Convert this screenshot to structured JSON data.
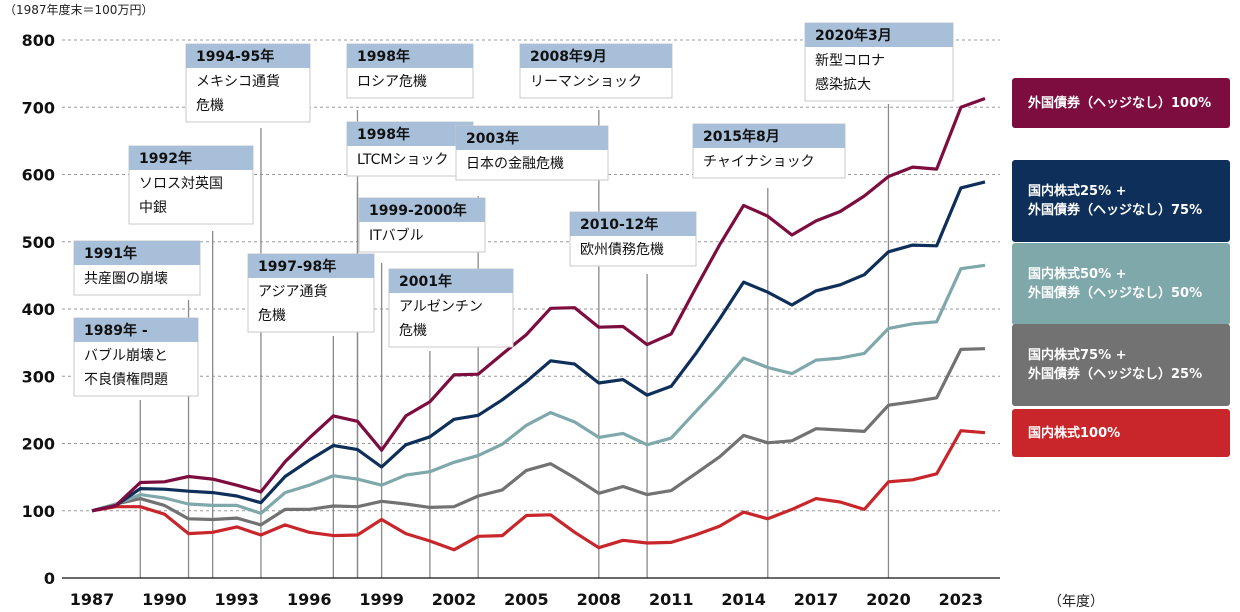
{
  "chart_data": {
    "type": "line",
    "unit_note": "（1987年度末＝100万円）",
    "xlabel": "（年度）",
    "ylim": [
      0,
      800
    ],
    "y_ticks": [
      0,
      100,
      200,
      300,
      400,
      500,
      600,
      700,
      800
    ],
    "x": [
      1987,
      1988,
      1989,
      1990,
      1991,
      1992,
      1993,
      1994,
      1995,
      1996,
      1997,
      1998,
      1999,
      2000,
      2001,
      2002,
      2003,
      2004,
      2005,
      2006,
      2007,
      2008,
      2009,
      2010,
      2011,
      2012,
      2013,
      2014,
      2015,
      2016,
      2017,
      2018,
      2019,
      2020,
      2021,
      2022,
      2023,
      2024
    ],
    "x_tick_labels": [
      1987,
      1990,
      1993,
      1996,
      1999,
      2002,
      2005,
      2008,
      2011,
      2014,
      2017,
      2020,
      2023
    ],
    "series": [
      {
        "name": "外国債券（ヘッジなし）100%",
        "legend_lines": [
          "外国債券（ヘッジなし）100%"
        ],
        "color": "#7d0c3f",
        "values": [
          100,
          108,
          142,
          143,
          151,
          147,
          138,
          128,
          173,
          208,
          241,
          233,
          190,
          241,
          262,
          302,
          303,
          333,
          362,
          401,
          402,
          373,
          374,
          347,
          363,
          430,
          495,
          554,
          538,
          510,
          531,
          545,
          568,
          597,
          611,
          608,
          700,
          713
        ]
      },
      {
        "name": "国内株式25% + 外国債券（ヘッジなし）75%",
        "legend_lines": [
          "国内株式25% +",
          "外国債券（ヘッジなし）75%"
        ],
        "color": "#0d2f5a",
        "values": [
          100,
          108,
          133,
          132,
          129,
          127,
          122,
          112,
          151,
          175,
          197,
          191,
          165,
          198,
          210,
          236,
          242,
          265,
          292,
          323,
          318,
          290,
          295,
          272,
          285,
          333,
          385,
          440,
          425,
          406,
          427,
          436,
          451,
          485,
          495,
          494,
          580,
          589
        ]
      },
      {
        "name": "国内株式50% + 外国債券（ヘッジなし）50%",
        "legend_lines": [
          "国内株式50% +",
          "外国債券（ヘッジなし）50%"
        ],
        "color": "#7fa8ab",
        "values": [
          100,
          110,
          124,
          119,
          110,
          108,
          108,
          96,
          127,
          138,
          152,
          147,
          138,
          153,
          158,
          172,
          182,
          199,
          227,
          246,
          232,
          209,
          215,
          198,
          208,
          247,
          285,
          327,
          313,
          304,
          324,
          327,
          334,
          371,
          378,
          381,
          460,
          465
        ]
      },
      {
        "name": "国内株式75% + 外国債券（ヘッジなし）25%",
        "legend_lines": [
          "国内株式75% +",
          "外国債券（ヘッジなし）25%"
        ],
        "color": "#727272",
        "values": [
          100,
          110,
          118,
          108,
          88,
          87,
          89,
          79,
          102,
          102,
          107,
          106,
          114,
          110,
          105,
          106,
          122,
          131,
          160,
          170,
          149,
          126,
          136,
          124,
          130,
          155,
          180,
          212,
          201,
          204,
          222,
          220,
          218,
          257,
          262,
          268,
          340,
          341
        ]
      },
      {
        "name": "国内株式100%",
        "legend_lines": [
          "国内株式100%"
        ],
        "color": "#c8262b",
        "values": [
          100,
          106,
          106,
          95,
          66,
          68,
          76,
          64,
          79,
          68,
          63,
          64,
          87,
          66,
          55,
          42,
          62,
          63,
          93,
          94,
          68,
          45,
          56,
          52,
          53,
          64,
          77,
          98,
          88,
          102,
          118,
          113,
          102,
          143,
          146,
          155,
          219,
          216
        ]
      }
    ],
    "annotations": [
      {
        "year": 1989,
        "line_top": 400,
        "lines": [
          "1989年 -",
          "バブル崩壊と",
          "不良債権問題"
        ]
      },
      {
        "year": 1991,
        "line_top": 300,
        "lines": [
          "1991年",
          "共産圏の崩壊"
        ]
      },
      {
        "year": 1992,
        "line_top": 231,
        "lines": [
          "1992年",
          "ソロス対英国",
          "中銀"
        ]
      },
      {
        "year": 1994,
        "line_top": 128,
        "lines": [
          "1994-95年",
          "メキシコ通貨",
          "危機"
        ]
      },
      {
        "year": 1997,
        "line_top": 336,
        "lines": [
          "1997-98年",
          "アジア通貨",
          "危機"
        ]
      },
      {
        "year": 1998,
        "line_top": 110,
        "lines": [
          "1998年",
          "ロシア危機"
        ]
      },
      {
        "year": 1998,
        "line_top": 182,
        "lines": [
          "1998年",
          "LTCMショック"
        ]
      },
      {
        "year": 1999,
        "line_top": 263,
        "lines": [
          "1999-2000年",
          "ITバブル"
        ]
      },
      {
        "year": 2001,
        "line_top": 351,
        "lines": [
          "2001年",
          "アルゼンチン",
          "危機"
        ]
      },
      {
        "year": 2003,
        "line_top": 196,
        "lines": [
          "2003年",
          "日本の金融危機"
        ]
      },
      {
        "year": 2008,
        "line_top": 110,
        "lines": [
          "2008年9月",
          "リーマンショック"
        ]
      },
      {
        "year": 2010,
        "line_top": 274,
        "lines": [
          "2010-12年",
          "欧州債務危機"
        ]
      },
      {
        "year": 2015,
        "line_top": 188,
        "lines": [
          "2015年8月",
          "チャイナショック"
        ]
      },
      {
        "year": 2020,
        "line_top": 104,
        "lines": [
          "2020年3月",
          "新型コロナ",
          "感染拡大"
        ]
      }
    ],
    "grid": true,
    "legend_position": "right"
  }
}
